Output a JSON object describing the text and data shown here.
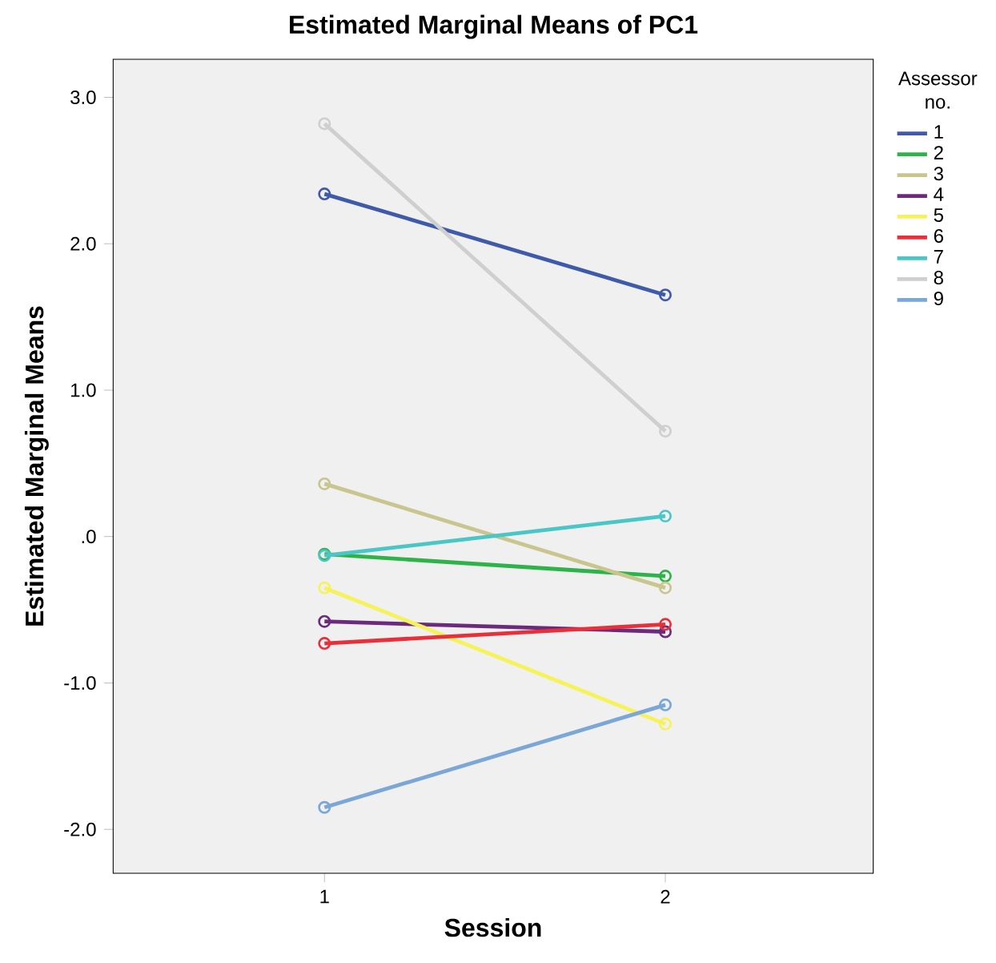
{
  "chart_data": {
    "type": "line",
    "title": "Estimated Marginal Means of PC1",
    "xlabel": "Session",
    "ylabel": "Estimated Marginal Means",
    "legend_title": "Assessor no.",
    "categories": [
      "1",
      "2"
    ],
    "series": [
      {
        "name": "1",
        "color": "#3f5aa8",
        "values": [
          2.34,
          1.65
        ]
      },
      {
        "name": "2",
        "color": "#2eb34a",
        "values": [
          -0.12,
          -0.27
        ]
      },
      {
        "name": "3",
        "color": "#c8c58e",
        "values": [
          0.36,
          -0.35
        ]
      },
      {
        "name": "4",
        "color": "#6c2a7d",
        "values": [
          -0.58,
          -0.65
        ]
      },
      {
        "name": "5",
        "color": "#f5f25a",
        "values": [
          -0.35,
          -1.28
        ]
      },
      {
        "name": "6",
        "color": "#e8303a",
        "values": [
          -0.73,
          -0.6
        ]
      },
      {
        "name": "7",
        "color": "#4ac6c6",
        "values": [
          -0.13,
          0.14
        ]
      },
      {
        "name": "8",
        "color": "#cfcfcf",
        "values": [
          2.82,
          0.72
        ]
      },
      {
        "name": "9",
        "color": "#7ba7d6",
        "values": [
          -1.85,
          -1.15
        ]
      }
    ],
    "ylim": [
      -2.3,
      3.26
    ],
    "yticks": [
      {
        "value": -2,
        "label": "-2.0"
      },
      {
        "value": -1,
        "label": "-1.0"
      },
      {
        "value": 0,
        "label": ".0"
      },
      {
        "value": 1,
        "label": "1.0"
      },
      {
        "value": 2,
        "label": "2.0"
      },
      {
        "value": 3,
        "label": "3.0"
      }
    ],
    "grid": false,
    "legend": "right",
    "marker": "circle",
    "line_style": "solid"
  }
}
